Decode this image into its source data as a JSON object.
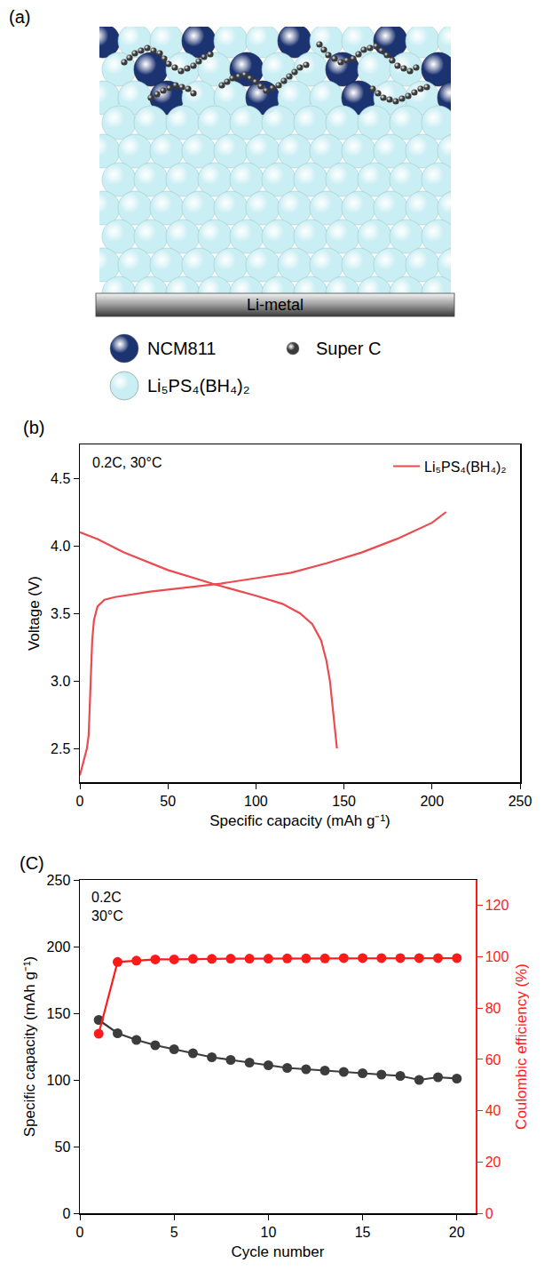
{
  "diagram": {
    "panel_label": "(a)",
    "electrode": "Li-metal",
    "legend": [
      {
        "label": "NCM811",
        "color": "#1c3372"
      },
      {
        "label": "Super C",
        "color": "#3a3a3a"
      },
      {
        "label": "Li₅PS₄(BH₄)₂",
        "color": "#c9eef3"
      }
    ]
  },
  "chart_data": [
    {
      "type": "line",
      "panel_label": "(b)",
      "annotation": [
        "0.2C, 30°C"
      ],
      "x_label": "Specific capacity (mAh g⁻¹)",
      "y_label": "Voltage (V)",
      "xlim": [
        0,
        250
      ],
      "xticks": [
        0,
        50,
        100,
        150,
        200,
        250
      ],
      "ylim": [
        2.25,
        4.75
      ],
      "yticks": [
        2.5,
        {
          "value": 3,
          "label": "3.0"
        },
        3.5,
        {
          "value": 4,
          "label": "4.0"
        },
        4.5
      ],
      "grid": false,
      "legend": "top right",
      "series": [
        {
          "name": "Li₅PS₄(BH₄)₂",
          "color": "#eb4a4f",
          "line_style": "solid",
          "x": [
            0,
            2,
            4,
            5,
            6,
            7,
            8,
            10,
            14,
            20,
            40,
            60,
            80,
            100,
            120,
            140,
            160,
            180,
            200,
            208
          ],
          "values": [
            2.3,
            2.4,
            2.5,
            2.6,
            3.0,
            3.3,
            3.45,
            3.55,
            3.6,
            3.62,
            3.66,
            3.69,
            3.72,
            3.76,
            3.8,
            3.87,
            3.95,
            4.05,
            4.17,
            4.25
          ]
        },
        {
          "color": "#eb4a4f",
          "line_style": "solid",
          "x": [
            0,
            10,
            25,
            50,
            75,
            100,
            115,
            125,
            132,
            137,
            140,
            142,
            144,
            145,
            146
          ],
          "values": [
            4.1,
            4.05,
            3.95,
            3.82,
            3.72,
            3.63,
            3.57,
            3.5,
            3.42,
            3.3,
            3.15,
            3.0,
            2.75,
            2.6,
            2.5
          ]
        }
      ]
    },
    {
      "type": "line",
      "panel_label": "(C)",
      "annotation": [
        "0.2C",
        "30°C"
      ],
      "x_label": "Cycle number",
      "y_label": "Specific capacity (mAh g⁻¹)",
      "y2_label": "Coulombic efficiency (%)",
      "xlim": [
        0,
        21
      ],
      "xticks": [
        0,
        5,
        10,
        15,
        20
      ],
      "ylim": [
        0,
        250
      ],
      "yticks": [
        0,
        50,
        100,
        150,
        200,
        250
      ],
      "y2lim": [
        0,
        130
      ],
      "y2ticks": [
        0,
        20,
        40,
        60,
        80,
        100,
        120
      ],
      "grid": false,
      "x": [
        1,
        2,
        3,
        4,
        5,
        6,
        7,
        8,
        9,
        10,
        11,
        12,
        13,
        14,
        15,
        16,
        17,
        18,
        19,
        20
      ],
      "series": [
        {
          "color": "#3c3c3c",
          "marker": "circle",
          "line_style": "solid",
          "axis": "y",
          "values": [
            145,
            135,
            130,
            126,
            123,
            120,
            117,
            115,
            113,
            111,
            109,
            108,
            107,
            106,
            105,
            104,
            103,
            100,
            102,
            101
          ]
        },
        {
          "color": "#ff1a1a",
          "marker": "circle",
          "line_style": "solid",
          "axis": "y2",
          "values": [
            70,
            98,
            98.5,
            99,
            99,
            99.2,
            99.2,
            99.3,
            99.3,
            99.3,
            99.4,
            99.4,
            99.4,
            99.5,
            99.5,
            99.5,
            99.5,
            99.5,
            99.5,
            99.5
          ]
        }
      ]
    }
  ]
}
